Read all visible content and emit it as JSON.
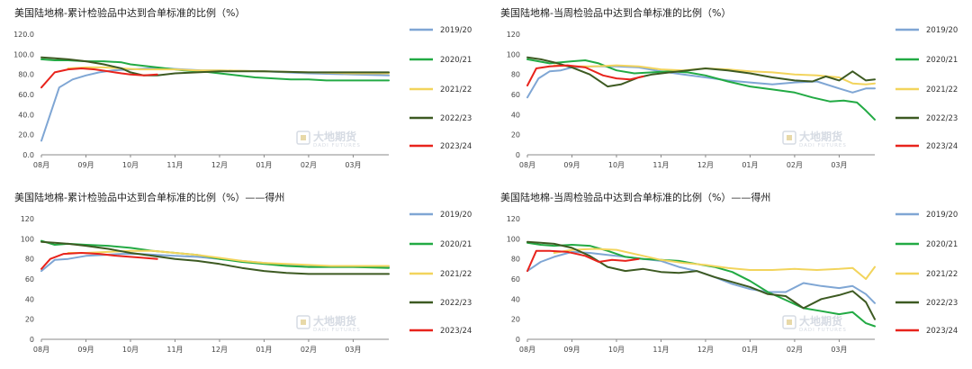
{
  "colors": {
    "2019/20": "#7fa6d4",
    "2020/21": "#22aa44",
    "2021/22": "#f2d45c",
    "2022/23": "#3d5a22",
    "2023/24": "#e8231c"
  },
  "watermark": {
    "name": "大地期货",
    "sub": "DADI FUTURES",
    "icon": "dadi-logo-icon"
  },
  "chart_data": [
    {
      "type": "line",
      "title": "美国陆地棉-累计检验品中达到合单标准的比例（%）",
      "x_ticks": [
        "08月",
        "09月",
        "10月",
        "11月",
        "12月",
        "01月",
        "02月",
        "03月"
      ],
      "ylim": [
        0,
        120
      ],
      "y_ticks": [
        "0.0",
        "20.0",
        "40.0",
        "60.0",
        "80.0",
        "100.0",
        "120.0"
      ],
      "legend_position": "right",
      "grid": false,
      "series": [
        {
          "name": "2019/20",
          "x": [
            0,
            0.4,
            0.7,
            1,
            1.3,
            1.6,
            2,
            2.4,
            2.8,
            3.2,
            3.6,
            4,
            5,
            6,
            7,
            7.8
          ],
          "values": [
            14,
            67,
            75,
            79,
            82,
            84,
            85,
            86,
            86,
            85,
            84,
            84,
            83,
            81,
            80,
            79
          ]
        },
        {
          "name": "2020/21",
          "x": [
            0,
            0.3,
            0.6,
            1,
            1.4,
            1.8,
            2,
            2.4,
            2.8,
            3.2,
            3.6,
            4,
            4.4,
            4.8,
            5.2,
            5.6,
            6,
            6.4,
            7,
            7.8
          ],
          "values": [
            95,
            94,
            94,
            93,
            93,
            92,
            90,
            88,
            86,
            84,
            83,
            81,
            79,
            77,
            76,
            75,
            75,
            74,
            74,
            74
          ]
        },
        {
          "name": "2021/22",
          "x": [
            0.6,
            1,
            1.4,
            1.8,
            2.2,
            2.6,
            3,
            3.5,
            4,
            5,
            6,
            7,
            7.8
          ],
          "values": [
            86,
            87,
            87,
            86,
            85,
            85,
            85,
            84,
            84,
            83,
            82,
            81,
            81
          ]
        },
        {
          "name": "2022/23",
          "x": [
            0,
            0.3,
            0.6,
            1,
            1.4,
            1.8,
            2,
            2.3,
            2.6,
            3,
            3.5,
            4,
            5,
            6,
            7,
            7.8
          ],
          "values": [
            97,
            96,
            95,
            93,
            90,
            86,
            82,
            79,
            79,
            81,
            82,
            83,
            83,
            82,
            82,
            82
          ]
        },
        {
          "name": "2023/24",
          "x": [
            0,
            0.3,
            0.6,
            0.9,
            1.2,
            1.5,
            1.8,
            2,
            2.3,
            2.6
          ],
          "values": [
            67,
            82,
            85,
            86,
            85,
            83,
            81,
            80,
            79,
            80
          ]
        }
      ]
    },
    {
      "type": "line",
      "title": "美国陆地棉-当周检验品中达到合单标准的比例（%）",
      "x_ticks": [
        "08月",
        "09月",
        "10月",
        "11月",
        "12月",
        "01月",
        "02月",
        "03月"
      ],
      "ylim": [
        0,
        120
      ],
      "y_ticks": [
        "0",
        "20",
        "40",
        "60",
        "80",
        "100",
        "120"
      ],
      "legend_position": "right",
      "grid": false,
      "series": [
        {
          "name": "2019/20",
          "x": [
            0,
            0.25,
            0.5,
            0.75,
            1,
            1.5,
            2,
            2.5,
            3,
            3.5,
            4,
            4.5,
            5,
            5.5,
            6,
            6.5,
            7,
            7.3,
            7.6,
            7.8
          ],
          "values": [
            57,
            76,
            83,
            84,
            87,
            88,
            88,
            87,
            83,
            80,
            77,
            74,
            72,
            70,
            72,
            73,
            66,
            62,
            66,
            66
          ]
        },
        {
          "name": "2020/21",
          "x": [
            0,
            0.25,
            0.5,
            1,
            1.3,
            1.6,
            2,
            2.4,
            2.8,
            3.2,
            3.6,
            4,
            4.5,
            5,
            5.5,
            6,
            6.4,
            6.8,
            7.1,
            7.4,
            7.6,
            7.8
          ],
          "values": [
            95,
            93,
            91,
            93,
            94,
            91,
            84,
            81,
            82,
            83,
            82,
            79,
            73,
            68,
            65,
            62,
            57,
            53,
            54,
            52,
            44,
            35
          ]
        },
        {
          "name": "2021/22",
          "x": [
            0.6,
            1,
            1.5,
            2,
            2.5,
            3,
            3.5,
            4,
            4.5,
            5,
            5.5,
            6,
            6.5,
            7,
            7.3,
            7.6,
            7.8
          ],
          "values": [
            89,
            88,
            88,
            89,
            88,
            85,
            84,
            86,
            85,
            83,
            82,
            80,
            79,
            77,
            71,
            70,
            71
          ]
        },
        {
          "name": "2022/23",
          "x": [
            0,
            0.3,
            0.6,
            1,
            1.4,
            1.8,
            2.1,
            2.5,
            2.8,
            3.2,
            3.6,
            4,
            4.5,
            5,
            5.5,
            6,
            6.4,
            6.7,
            7,
            7.3,
            7.6,
            7.8
          ],
          "values": [
            97,
            95,
            92,
            87,
            80,
            68,
            70,
            77,
            80,
            82,
            84,
            86,
            84,
            81,
            77,
            74,
            73,
            78,
            74,
            83,
            74,
            75
          ]
        },
        {
          "name": "2023/24",
          "x": [
            0,
            0.2,
            0.5,
            0.9,
            1.3,
            1.7,
            2,
            2.3,
            2.6
          ],
          "values": [
            69,
            86,
            88,
            89,
            87,
            79,
            76,
            75,
            78
          ]
        }
      ]
    },
    {
      "type": "line",
      "title": "美国陆地棉-累计检验品中达到合单标准的比例（%）——得州",
      "x_ticks": [
        "08月",
        "09月",
        "10月",
        "11月",
        "12月",
        "01月",
        "02月",
        "03月"
      ],
      "ylim": [
        0,
        120
      ],
      "y_ticks": [
        "0",
        "20",
        "40",
        "60",
        "80",
        "100",
        "120"
      ],
      "legend_position": "right",
      "grid": false,
      "series": [
        {
          "name": "2019/20",
          "x": [
            0,
            0.3,
            0.6,
            1,
            1.4,
            1.8,
            2.2,
            2.6,
            3,
            3.5,
            4,
            4.5,
            5,
            5.5,
            6,
            6.5,
            7,
            7.8
          ],
          "values": [
            68,
            79,
            80,
            83,
            84,
            85,
            85,
            84,
            83,
            82,
            80,
            78,
            76,
            74,
            72,
            72,
            72,
            72
          ]
        },
        {
          "name": "2020/21",
          "x": [
            0,
            0.3,
            0.6,
            1,
            1.5,
            2,
            2.5,
            3,
            3.5,
            4,
            4.5,
            5,
            5.5,
            6,
            6.5,
            7,
            7.8
          ],
          "values": [
            98,
            94,
            95,
            94,
            93,
            91,
            88,
            86,
            84,
            80,
            77,
            75,
            73,
            72,
            72,
            72,
            71
          ]
        },
        {
          "name": "2021/22",
          "x": [
            0.6,
            1,
            1.5,
            2,
            2.5,
            3,
            3.5,
            4,
            4.5,
            5,
            5.5,
            6,
            6.5,
            7,
            7.8
          ],
          "values": [
            86,
            86,
            87,
            88,
            88,
            86,
            84,
            81,
            78,
            76,
            75,
            74,
            73,
            73,
            73
          ]
        },
        {
          "name": "2022/23",
          "x": [
            0,
            0.3,
            0.6,
            1,
            1.5,
            2,
            2.5,
            3,
            3.5,
            4,
            4.5,
            5,
            5.5,
            6,
            6.5,
            7,
            7.8
          ],
          "values": [
            97,
            96,
            95,
            93,
            90,
            86,
            83,
            80,
            78,
            75,
            71,
            68,
            66,
            65,
            65,
            65,
            65
          ]
        },
        {
          "name": "2023/24",
          "x": [
            0,
            0.2,
            0.5,
            0.9,
            1.3,
            1.7,
            2,
            2.3,
            2.6
          ],
          "values": [
            70,
            80,
            85,
            86,
            85,
            83,
            82,
            81,
            80
          ]
        }
      ]
    },
    {
      "type": "line",
      "title": "美国陆地棉-当周检验品中达到合单标准的比例（%）——得州",
      "x_ticks": [
        "08月",
        "09月",
        "10月",
        "11月",
        "12月",
        "01月",
        "02月",
        "03月"
      ],
      "ylim": [
        0,
        120
      ],
      "y_ticks": [
        "0",
        "20",
        "40",
        "60",
        "80",
        "100",
        "120"
      ],
      "legend_position": "right",
      "grid": false,
      "series": [
        {
          "name": "2019/20",
          "x": [
            0,
            0.3,
            0.6,
            1,
            1.4,
            1.8,
            2.2,
            2.6,
            3,
            3.4,
            3.8,
            4.2,
            4.6,
            5,
            5.4,
            5.8,
            6.2,
            6.6,
            7,
            7.3,
            7.6,
            7.8
          ],
          "values": [
            68,
            77,
            82,
            87,
            86,
            84,
            82,
            80,
            78,
            72,
            68,
            62,
            55,
            50,
            47,
            47,
            56,
            53,
            51,
            53,
            45,
            36
          ]
        },
        {
          "name": "2020/21",
          "x": [
            0,
            0.3,
            0.6,
            1,
            1.4,
            1.8,
            2.2,
            2.6,
            3,
            3.4,
            3.8,
            4.2,
            4.6,
            5,
            5.4,
            5.8,
            6.2,
            6.6,
            7,
            7.3,
            7.6,
            7.8
          ],
          "values": [
            96,
            94,
            93,
            94,
            93,
            88,
            82,
            80,
            79,
            78,
            75,
            72,
            67,
            58,
            47,
            39,
            31,
            28,
            25,
            27,
            16,
            13
          ]
        },
        {
          "name": "2021/22",
          "x": [
            0.6,
            1,
            1.5,
            2,
            2.5,
            3,
            3.5,
            4,
            4.5,
            5,
            5.5,
            6,
            6.5,
            7,
            7.3,
            7.6,
            7.8
          ],
          "values": [
            86,
            89,
            90,
            89,
            84,
            79,
            76,
            74,
            71,
            69,
            69,
            70,
            69,
            70,
            71,
            60,
            72
          ]
        },
        {
          "name": "2022/23",
          "x": [
            0,
            0.3,
            0.6,
            1,
            1.4,
            1.8,
            2.2,
            2.6,
            3,
            3.4,
            3.8,
            4.2,
            4.6,
            5,
            5.4,
            5.8,
            6.2,
            6.6,
            7,
            7.3,
            7.6,
            7.8
          ],
          "values": [
            97,
            96,
            95,
            91,
            83,
            72,
            68,
            70,
            67,
            66,
            68,
            62,
            57,
            52,
            45,
            43,
            31,
            40,
            44,
            48,
            37,
            20
          ]
        },
        {
          "name": "2023/24",
          "x": [
            0,
            0.2,
            0.5,
            0.9,
            1.3,
            1.6,
            1.9,
            2.2,
            2.5
          ],
          "values": [
            68,
            88,
            88,
            87,
            83,
            77,
            79,
            78,
            80
          ]
        }
      ]
    }
  ]
}
